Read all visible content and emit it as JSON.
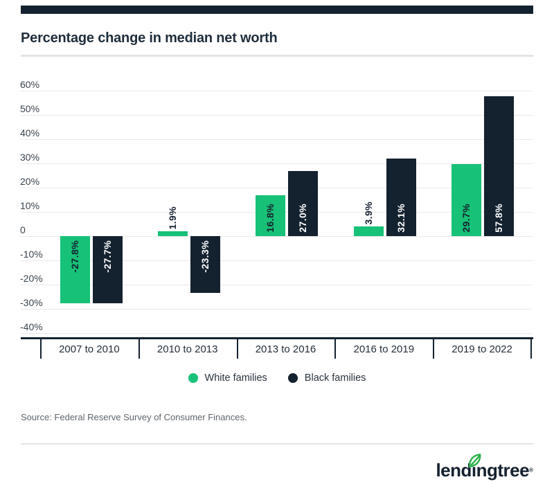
{
  "header": {
    "title": "Percentage change in median net worth"
  },
  "chart_data": {
    "type": "bar",
    "title": "Percentage change in median net worth",
    "categories": [
      "2007 to 2010",
      "2010 to 2013",
      "2013 to 2016",
      "2016 to 2019",
      "2019 to 2022"
    ],
    "series": [
      {
        "name": "White families",
        "color": "#17C177",
        "label_color": "#14212F",
        "values": [
          -27.8,
          1.9,
          16.8,
          3.9,
          29.7
        ],
        "labels": [
          "-27.8%",
          "1.9%",
          "16.8%",
          "3.9%",
          "29.7%"
        ]
      },
      {
        "name": "Black families",
        "color": "#14212F",
        "label_color": "#FFFFFF",
        "values": [
          -27.7,
          -23.3,
          27.0,
          32.1,
          57.8
        ],
        "labels": [
          "-27.7%",
          "-23.3%",
          "27.0%",
          "32.1%",
          "57.8%"
        ]
      }
    ],
    "y_ticks": [
      "60%",
      "50%",
      "40%",
      "30%",
      "20%",
      "10%",
      "0",
      "-10%",
      "-20%",
      "-30%",
      "-40%"
    ],
    "y_tick_values": [
      60,
      50,
      40,
      30,
      20,
      10,
      0,
      -10,
      -20,
      -30,
      -40
    ],
    "ylim": [
      -40,
      60
    ],
    "grid": true,
    "legend_position": "bottom",
    "xlabel": "",
    "ylabel": ""
  },
  "legend": {
    "items": [
      {
        "label": "White families",
        "color": "#17C177"
      },
      {
        "label": "Black families",
        "color": "#14212F"
      }
    ]
  },
  "source": {
    "text": "Source: Federal Reserve Survey of Consumer Finances."
  },
  "branding": {
    "logo_text": "lendingtree",
    "registered_mark": "®",
    "leaf_icon": "leaf-icon",
    "leaf_color": "#2DB24C",
    "navy": "#14212F",
    "green": "#17C177",
    "accent_bar_color": "#14212F"
  }
}
